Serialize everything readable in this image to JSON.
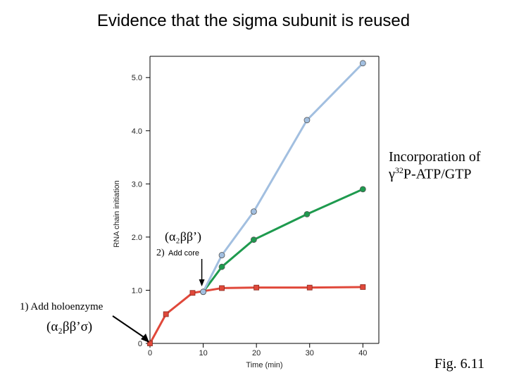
{
  "slide": {
    "title": "Evidence that the sigma subunit is reused",
    "side_label_line1": "Incorporation of",
    "side_label_line2_symbol": "γ",
    "side_label_line2_sup": "32",
    "side_label_line2_rest": "P-ATP/GTP",
    "fig_label": "Fig. 6.11",
    "step1_label": "1) Add holoenzyme",
    "step1_formula": "(α₂ββ’σ)",
    "step2_number": "2)",
    "step2_label": "Add core",
    "step2_formula": "(α₂ββ’)"
  },
  "chart_data": {
    "type": "line",
    "title": "",
    "xlabel": "Time (min)",
    "ylabel": "RNA chain initiation",
    "xlim": [
      0,
      43
    ],
    "ylim": [
      0,
      5.4
    ],
    "x_ticks": [
      0,
      10,
      20,
      30,
      40
    ],
    "x_tick_labels": [
      "0",
      "10",
      "20",
      "30",
      "40"
    ],
    "y_ticks": [
      0,
      1.0,
      2.0,
      3.0,
      4.0,
      5.0
    ],
    "y_tick_labels": [
      "0",
      "1.0",
      "2.0",
      "3.0",
      "4.0",
      "5.0"
    ],
    "grid": false,
    "series": [
      {
        "color": "#e0483a",
        "marker": "square",
        "x": [
          0,
          3,
          8,
          13.5,
          20,
          30,
          40
        ],
        "y": [
          0,
          0.55,
          0.95,
          1.04,
          1.05,
          1.05,
          1.06
        ]
      },
      {
        "color": "#1e9a4e",
        "marker": "circle",
        "x": [
          10,
          13.5,
          19.5,
          29.5,
          40
        ],
        "y": [
          0.97,
          1.44,
          1.95,
          2.43,
          2.9
        ]
      },
      {
        "color": "#a2bfe0",
        "marker": "circle",
        "x": [
          10,
          13.5,
          19.5,
          29.5,
          40
        ],
        "y": [
          0.97,
          1.66,
          2.48,
          4.2,
          5.27
        ]
      }
    ]
  }
}
